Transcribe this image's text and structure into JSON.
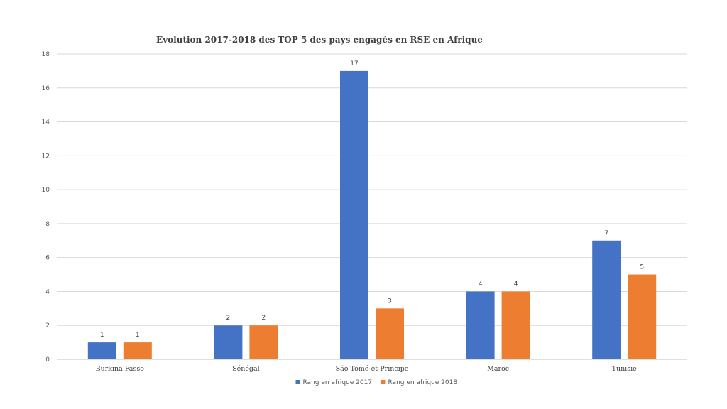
{
  "chart_data": {
    "type": "bar",
    "title": "Evolution 2017-2018 des TOP 5 des pays engagés en RSE en Afrique",
    "xlabel": "",
    "ylabel": "",
    "categories": [
      "Burkina Fasso",
      "Sénégal",
      "São Tomé-et-Principe",
      "Maroc",
      "Tunisie"
    ],
    "series": [
      {
        "name": "Rang en afrique 2017",
        "values": [
          1,
          2,
          17,
          4,
          7
        ],
        "color": "#4472C4"
      },
      {
        "name": "Rang en afrique 2018",
        "values": [
          1,
          2,
          3,
          4,
          5
        ],
        "color": "#ED7D31"
      }
    ],
    "ylim": [
      0,
      18
    ],
    "yticks": [
      0,
      2,
      4,
      6,
      8,
      10,
      12,
      14,
      16,
      18
    ],
    "grid": true,
    "legend_position": "bottom",
    "data_labels": true
  }
}
